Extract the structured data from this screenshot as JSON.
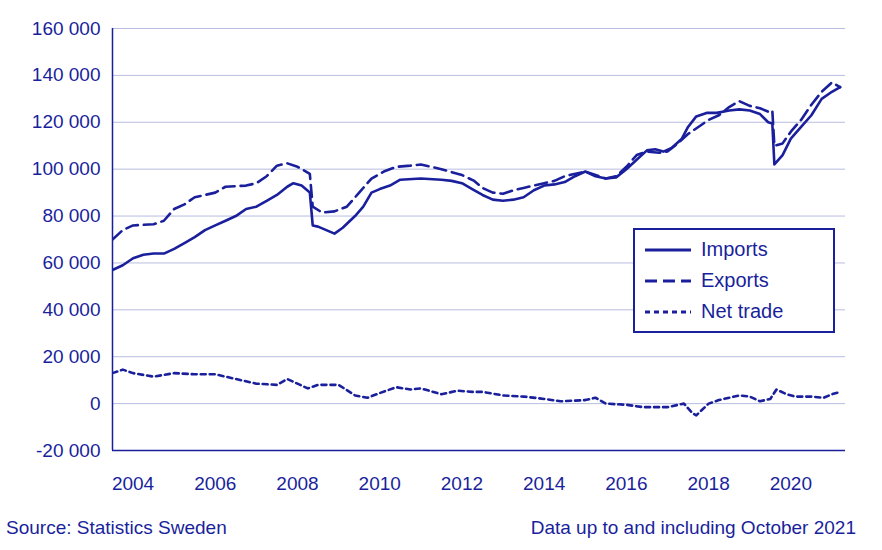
{
  "chart_data": {
    "type": "line",
    "source": "Source: Statistics Sweden",
    "note": "Data up to and including October 2021",
    "legend": "right",
    "grid": true,
    "xlim": [
      2004.0,
      2021.83
    ],
    "xticks": [
      {
        "value": 2004.5,
        "label": "2004"
      },
      {
        "value": 2006.5,
        "label": "2006"
      },
      {
        "value": 2008.5,
        "label": "2008"
      },
      {
        "value": 2010.5,
        "label": "2010"
      },
      {
        "value": 2012.5,
        "label": "2012"
      },
      {
        "value": 2014.5,
        "label": "2014"
      },
      {
        "value": 2016.5,
        "label": "2016"
      },
      {
        "value": 2018.5,
        "label": "2018"
      },
      {
        "value": 2020.5,
        "label": "2020"
      }
    ],
    "ylim": [
      -20000,
      160000
    ],
    "yticks": [
      {
        "value": -20000,
        "label": "-20 000"
      },
      0,
      {
        "value": 20000,
        "label": "20 000"
      },
      {
        "value": 40000,
        "label": "40 000"
      },
      {
        "value": 60000,
        "label": "60 000"
      },
      {
        "value": 80000,
        "label": "80 000"
      },
      {
        "value": 100000,
        "label": "100 000"
      },
      {
        "value": 120000,
        "label": "120 000"
      },
      {
        "value": 140000,
        "label": "140 000"
      },
      {
        "value": 160000,
        "label": "160 000"
      }
    ],
    "series": [
      {
        "name": "Imports",
        "color": "#1a1f9c",
        "line_style": "solid",
        "x": [
          2004.0,
          2004.25,
          2004.5,
          2004.75,
          2005.0,
          2005.25,
          2005.5,
          2005.75,
          2006.0,
          2006.25,
          2006.5,
          2006.75,
          2007.0,
          2007.25,
          2007.5,
          2007.75,
          2008.0,
          2008.25,
          2008.4,
          2008.6,
          2008.8,
          2008.87,
          2009.0,
          2009.2,
          2009.4,
          2009.6,
          2009.9,
          2010.1,
          2010.3,
          2010.5,
          2010.75,
          2011.0,
          2011.5,
          2012.0,
          2012.25,
          2012.5,
          2012.75,
          2013.0,
          2013.25,
          2013.5,
          2013.75,
          2014.0,
          2014.25,
          2014.5,
          2014.75,
          2015.0,
          2015.25,
          2015.5,
          2015.75,
          2016.0,
          2016.25,
          2016.5,
          2016.75,
          2017.0,
          2017.2,
          2017.4,
          2017.6,
          2017.85,
          2018.0,
          2018.2,
          2018.45,
          2018.7,
          2019.0,
          2019.25,
          2019.5,
          2019.75,
          2019.95,
          2020.05,
          2020.1,
          2020.3,
          2020.5,
          2020.75,
          2021.0,
          2021.25,
          2021.5,
          2021.7
        ],
        "values": [
          57000,
          59000,
          62000,
          63500,
          64000,
          64000,
          66000,
          68500,
          71000,
          74000,
          76000,
          78000,
          80000,
          83000,
          84000,
          86500,
          89000,
          92500,
          94000,
          93000,
          90000,
          76000,
          75500,
          74000,
          72500,
          75000,
          80000,
          84000,
          90000,
          91500,
          93000,
          95500,
          96000,
          95500,
          95000,
          94000,
          91500,
          89000,
          87000,
          86500,
          87000,
          88000,
          91000,
          93000,
          93500,
          94500,
          97000,
          99000,
          97000,
          96000,
          96500,
          100000,
          104000,
          108000,
          108500,
          107500,
          109000,
          113000,
          118000,
          122500,
          124000,
          124000,
          125000,
          125500,
          125000,
          123500,
          120000,
          119500,
          102000,
          106000,
          113000,
          118000,
          123000,
          130000,
          133000,
          135000
        ]
      },
      {
        "name": "Exports",
        "color": "#1a1f9c",
        "line_style": "dashed",
        "x": [
          2004.0,
          2004.25,
          2004.5,
          2005.0,
          2005.25,
          2005.5,
          2005.75,
          2006.0,
          2006.5,
          2006.75,
          2007.25,
          2007.5,
          2007.75,
          2008.0,
          2008.25,
          2008.5,
          2008.8,
          2008.87,
          2009.1,
          2009.4,
          2009.7,
          2010.0,
          2010.3,
          2010.6,
          2010.9,
          2011.25,
          2011.5,
          2012.0,
          2012.5,
          2012.8,
          2013.0,
          2013.25,
          2013.5,
          2013.75,
          2014.0,
          2014.5,
          2014.75,
          2015.0,
          2015.5,
          2015.75,
          2016.0,
          2016.25,
          2016.5,
          2016.75,
          2017.0,
          2017.3,
          2017.5,
          2017.75,
          2018.0,
          2018.25,
          2018.5,
          2018.75,
          2019.0,
          2019.25,
          2019.5,
          2019.75,
          2019.95,
          2020.05,
          2020.1,
          2020.3,
          2020.5,
          2020.75,
          2021.0,
          2021.25,
          2021.5,
          2021.7
        ],
        "values": [
          70000,
          74000,
          76000,
          76500,
          78000,
          83000,
          85000,
          88000,
          90000,
          92500,
          93000,
          94000,
          97000,
          101500,
          102500,
          101000,
          98000,
          84000,
          81500,
          82000,
          84000,
          90000,
          96000,
          99000,
          101000,
          101500,
          102000,
          100000,
          97500,
          95000,
          92000,
          90000,
          89500,
          91000,
          92000,
          94000,
          95000,
          97000,
          99000,
          97500,
          96000,
          97000,
          101000,
          106000,
          107500,
          107000,
          107500,
          111000,
          115000,
          118000,
          121000,
          123000,
          126500,
          129000,
          127000,
          126000,
          124500,
          125000,
          110000,
          111000,
          116000,
          121000,
          127500,
          133000,
          137000,
          135000
        ]
      },
      {
        "name": "Net trade",
        "color": "#1a1f9c",
        "line_style": "dotted",
        "x": [
          2004.0,
          2004.25,
          2004.5,
          2005.0,
          2005.5,
          2006.0,
          2006.5,
          2007.0,
          2007.5,
          2008.0,
          2008.25,
          2008.5,
          2008.75,
          2009.0,
          2009.5,
          2009.9,
          2010.2,
          2010.5,
          2010.9,
          2011.25,
          2011.5,
          2012.0,
          2012.4,
          2012.75,
          2013.0,
          2013.5,
          2014.0,
          2014.5,
          2014.9,
          2015.5,
          2015.75,
          2016.0,
          2016.5,
          2016.9,
          2017.25,
          2017.5,
          2017.9,
          2018.1,
          2018.2,
          2018.5,
          2018.75,
          2019.25,
          2019.5,
          2019.75,
          2020.0,
          2020.15,
          2020.4,
          2020.6,
          2021.0,
          2021.3,
          2021.5,
          2021.7
        ],
        "values": [
          13000,
          14500,
          13000,
          11500,
          13000,
          12500,
          12500,
          10500,
          8500,
          8000,
          10500,
          8500,
          6500,
          8000,
          8000,
          3500,
          2500,
          4500,
          7000,
          6000,
          6500,
          4000,
          5500,
          5000,
          5000,
          3500,
          3000,
          2000,
          1000,
          1500,
          2500,
          0,
          -500,
          -1500,
          -1500,
          -1500,
          0,
          -4000,
          -5000,
          0,
          1500,
          3500,
          3000,
          1000,
          2000,
          6000,
          4000,
          3000,
          3000,
          2500,
          4000,
          5000
        ]
      }
    ]
  }
}
